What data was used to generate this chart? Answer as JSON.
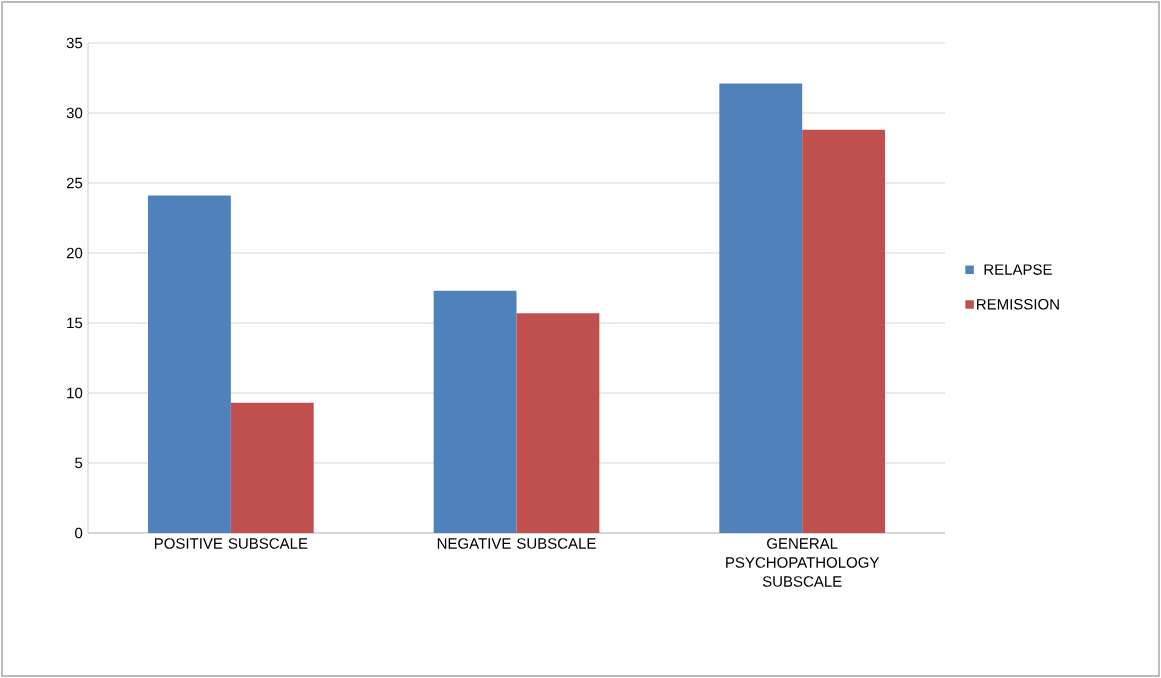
{
  "chart_data": {
    "type": "bar",
    "categories": [
      "POSITIVE SUBSCALE",
      "NEGATIVE SUBSCALE",
      "GENERAL PSYCHOPATHOLOGY SUBSCALE"
    ],
    "series": [
      {
        "name": "RELAPSE",
        "color": "#4f81bd",
        "values": [
          24.1,
          17.3,
          32.1
        ]
      },
      {
        "name": "REMISSION",
        "color": "#c0504d",
        "values": [
          9.3,
          15.7,
          28.8
        ]
      }
    ],
    "ylim": [
      0,
      35
    ],
    "yticks": [
      0,
      5,
      10,
      15,
      20,
      25,
      30,
      35
    ],
    "grid": "y",
    "legend": "right"
  }
}
